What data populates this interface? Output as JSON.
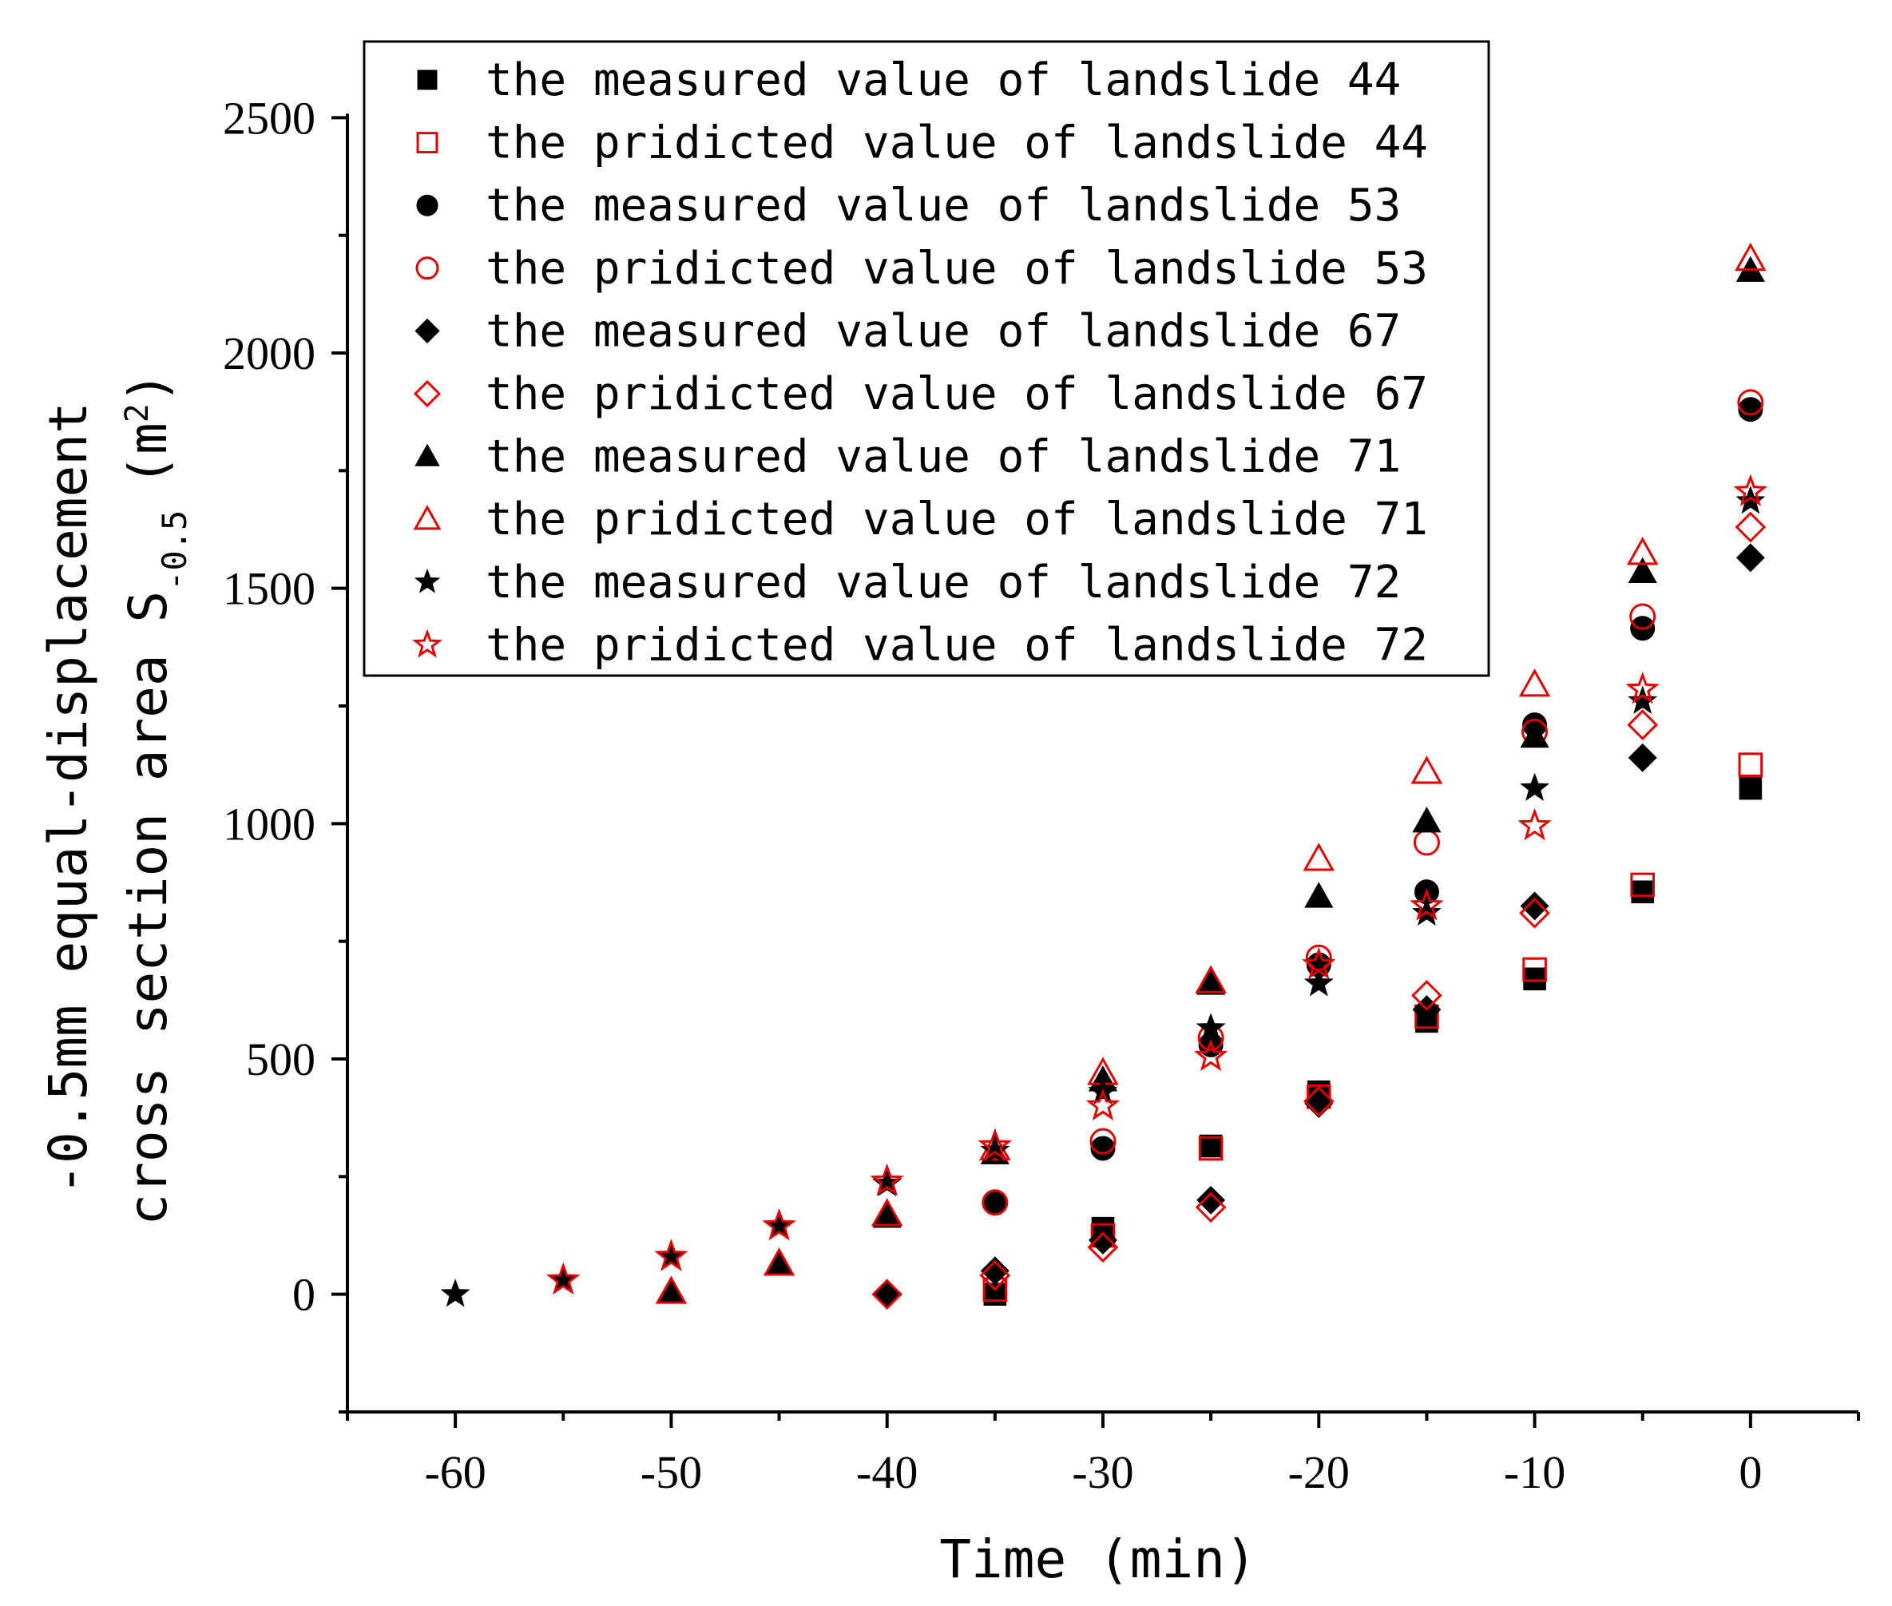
{
  "chart_data": {
    "type": "scatter",
    "xlabel": "Time (min)",
    "ylabel_line1": "-0.5mm equal-displacement",
    "ylabel_line2_main": "cross section area S",
    "ylabel_line2_sub": "-0.5",
    "ylabel_unit_open": "(m",
    "ylabel_unit_sup": "2",
    "ylabel_unit_close": ")",
    "xlim": [
      -65,
      5
    ],
    "ylim": [
      -250,
      2750
    ],
    "xticks": [
      -60,
      -50,
      -40,
      -30,
      -20,
      -10,
      0
    ],
    "xtick_labels": [
      "-60",
      "-50",
      "-40",
      "-30",
      "-20",
      "-10",
      "0"
    ],
    "yticks": [
      0,
      500,
      1000,
      1500,
      2000,
      2500
    ],
    "ytick_labels": [
      "0",
      "500",
      "1000",
      "1500",
      "2000",
      "2500"
    ],
    "legend_position": "top-center",
    "colors": {
      "measured": "#000000",
      "predicted": "#e00000",
      "axis": "#000000"
    },
    "series": [
      {
        "name": "the measured value of landslide 44",
        "marker": "square",
        "filled": true,
        "color": "#000000",
        "x": [
          -35,
          -30,
          -25,
          -20,
          -15,
          -10,
          -5,
          0
        ],
        "y": [
          0,
          140,
          315,
          430,
          580,
          670,
          855,
          1075
        ]
      },
      {
        "name": "the pridicted value of landslide 44",
        "marker": "square",
        "filled": false,
        "color": "#e00000",
        "x": [
          -35,
          -30,
          -25,
          -20,
          -15,
          -10,
          -5,
          0
        ],
        "y": [
          10,
          125,
          310,
          420,
          590,
          690,
          870,
          1125
        ]
      },
      {
        "name": "the measured value of landslide 53",
        "marker": "circle",
        "filled": true,
        "color": "#000000",
        "x": [
          -35,
          -30,
          -25,
          -20,
          -15,
          -10,
          -5,
          0
        ],
        "y": [
          195,
          310,
          530,
          700,
          855,
          1210,
          1415,
          1880
        ]
      },
      {
        "name": "the pridicted value of landslide 53",
        "marker": "circle",
        "filled": false,
        "color": "#e00000",
        "x": [
          -35,
          -30,
          -25,
          -20,
          -15,
          -10,
          -5,
          0
        ],
        "y": [
          195,
          325,
          545,
          715,
          960,
          1195,
          1440,
          1895
        ]
      },
      {
        "name": "the measured value of landslide 67",
        "marker": "diamond",
        "filled": true,
        "color": "#000000",
        "x": [
          -40,
          -35,
          -30,
          -25,
          -20,
          -15,
          -10,
          -5,
          0
        ],
        "y": [
          0,
          50,
          115,
          200,
          405,
          605,
          825,
          1140,
          1565
        ]
      },
      {
        "name": "the pridicted value of landslide 67",
        "marker": "diamond",
        "filled": false,
        "color": "#e00000",
        "x": [
          -40,
          -35,
          -30,
          -25,
          -20,
          -15,
          -10,
          -5,
          0
        ],
        "y": [
          0,
          40,
          100,
          185,
          410,
          635,
          810,
          1210,
          1630
        ]
      },
      {
        "name": "the measured value of landslide 71",
        "marker": "triangle",
        "filled": true,
        "color": "#000000",
        "x": [
          -50,
          -45,
          -40,
          -35,
          -30,
          -25,
          -20,
          -15,
          -10,
          -5,
          0
        ],
        "y": [
          5,
          65,
          165,
          300,
          455,
          660,
          845,
          1005,
          1185,
          1535,
          2175
        ]
      },
      {
        "name": "the pridicted value of landslide 71",
        "marker": "triangle",
        "filled": false,
        "color": "#e00000",
        "x": [
          -50,
          -45,
          -40,
          -35,
          -30,
          -25,
          -20,
          -15,
          -10,
          -5,
          0
        ],
        "y": [
          5,
          65,
          170,
          310,
          470,
          665,
          925,
          1110,
          1295,
          1575,
          2200
        ]
      },
      {
        "name": "the measured value of landslide 72",
        "marker": "star",
        "filled": true,
        "color": "#000000",
        "x": [
          -60,
          -55,
          -50,
          -45,
          -40,
          -35,
          -30,
          -25,
          -20,
          -15,
          -10,
          -5,
          0
        ],
        "y": [
          0,
          30,
          80,
          145,
          235,
          305,
          430,
          565,
          660,
          810,
          1075,
          1260,
          1685
        ]
      },
      {
        "name": "the pridicted value of landslide 72",
        "marker": "star",
        "filled": false,
        "color": "#e00000",
        "x": [
          -55,
          -50,
          -45,
          -40,
          -35,
          -30,
          -25,
          -20,
          -15,
          -10,
          -5,
          0
        ],
        "y": [
          30,
          80,
          145,
          240,
          315,
          400,
          505,
          700,
          825,
          995,
          1285,
          1705
        ]
      }
    ]
  }
}
